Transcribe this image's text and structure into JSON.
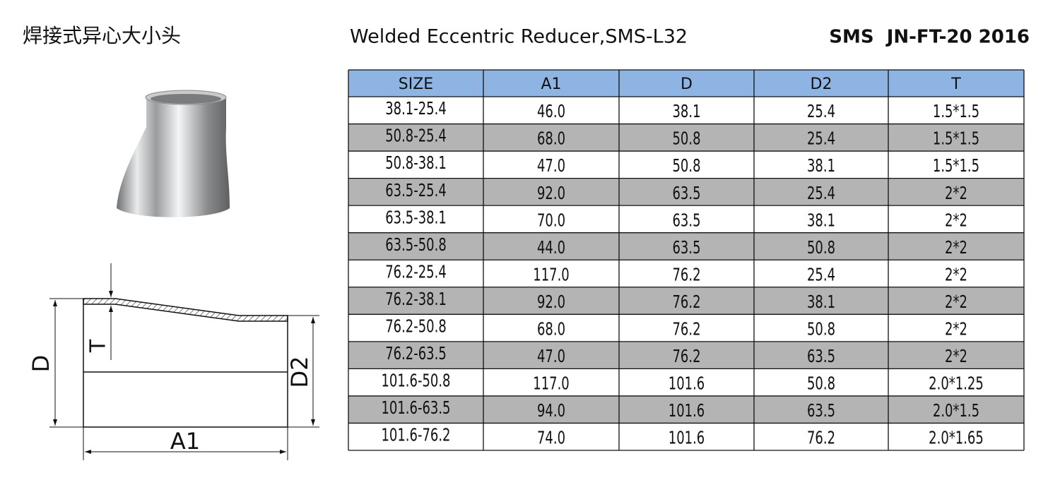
{
  "header": {
    "title_cn": "焊接式异心大小头",
    "title_en": "Welded Eccentric Reducer,SMS-L32",
    "standard": "SMS  JN-FT-20 2016"
  },
  "table": {
    "columns": [
      "SIZE",
      "A1",
      "D",
      "D2",
      "T"
    ],
    "rows": [
      [
        "38.1-25.4",
        "46.0",
        "38.1",
        "25.4",
        "1.5*1.5"
      ],
      [
        "50.8-25.4",
        "68.0",
        "50.8",
        "25.4",
        "1.5*1.5"
      ],
      [
        "50.8-38.1",
        "47.0",
        "50.8",
        "38.1",
        "1.5*1.5"
      ],
      [
        "63.5-25.4",
        "92.0",
        "63.5",
        "25.4",
        "2*2"
      ],
      [
        "63.5-38.1",
        "70.0",
        "63.5",
        "38.1",
        "2*2"
      ],
      [
        "63.5-50.8",
        "44.0",
        "63.5",
        "50.8",
        "2*2"
      ],
      [
        "76.2-25.4",
        "117.0",
        "76.2",
        "25.4",
        "2*2"
      ],
      [
        "76.2-38.1",
        "92.0",
        "76.2",
        "38.1",
        "2*2"
      ],
      [
        "76.2-50.8",
        "68.0",
        "76.2",
        "50.8",
        "2*2"
      ],
      [
        "76.2-63.5",
        "47.0",
        "76.2",
        "63.5",
        "2*2"
      ],
      [
        "101.6-50.8",
        "117.0",
        "101.6",
        "50.8",
        "2.0*1.25"
      ],
      [
        "101.6-63.5",
        "94.0",
        "101.6",
        "63.5",
        "2.0*1.5"
      ],
      [
        "101.6-76.2",
        "74.0",
        "101.6",
        "76.2",
        "2.0*1.65"
      ]
    ]
  },
  "diagram": {
    "labels": {
      "d": "D",
      "d2": "D2",
      "t": "T",
      "a1": "A1"
    }
  }
}
